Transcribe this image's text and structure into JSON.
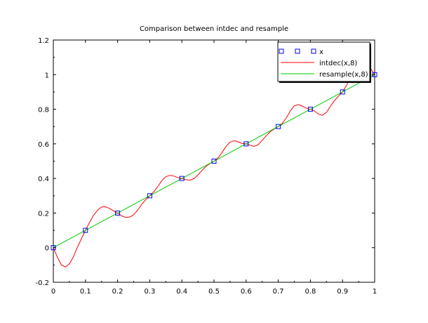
{
  "chart_data": {
    "type": "line",
    "title": "Comparison between intdec and resample",
    "xlabel": "",
    "ylabel": "",
    "xlim": [
      0,
      1
    ],
    "ylim": [
      -0.2,
      1.2
    ],
    "x_ticks": [
      "0",
      "0.1",
      "0.2",
      "0.3",
      "0.4",
      "0.5",
      "0.6",
      "0.7",
      "0.8",
      "0.9",
      "1"
    ],
    "y_ticks": [
      "-0.2",
      "0",
      "0.2",
      "0.4",
      "0.6",
      "0.8",
      "1",
      "1.2"
    ],
    "grid": false,
    "legend_position": "top-right",
    "series": [
      {
        "name": "x",
        "style": "markers",
        "marker": "square",
        "color": "#0000ff",
        "x": [
          0,
          0.1,
          0.2,
          0.3,
          0.4,
          0.5,
          0.6,
          0.7,
          0.8,
          0.9,
          1.0
        ],
        "y": [
          0,
          0.1,
          0.2,
          0.3,
          0.4,
          0.5,
          0.6,
          0.7,
          0.8,
          0.9,
          1.0
        ]
      },
      {
        "name": "intdec(x,8)",
        "style": "line",
        "color": "#ff0000",
        "x": [
          0,
          0.0125,
          0.025,
          0.0375,
          0.05,
          0.0625,
          0.075,
          0.0875,
          0.1,
          0.1125,
          0.125,
          0.1375,
          0.15,
          0.1625,
          0.175,
          0.1875,
          0.2,
          0.2125,
          0.225,
          0.2375,
          0.25,
          0.2625,
          0.275,
          0.2875,
          0.3,
          0.3125,
          0.325,
          0.3375,
          0.35,
          0.3625,
          0.375,
          0.3875,
          0.4,
          0.4125,
          0.425,
          0.4375,
          0.45,
          0.4625,
          0.475,
          0.4875,
          0.5,
          0.5125,
          0.525,
          0.5375,
          0.55,
          0.5625,
          0.575,
          0.5875,
          0.6,
          0.6125,
          0.625,
          0.6375,
          0.65,
          0.6625,
          0.675,
          0.6875,
          0.7,
          0.7125,
          0.725,
          0.7375,
          0.75,
          0.7625,
          0.775,
          0.7875,
          0.8,
          0.8125,
          0.825,
          0.8375,
          0.85,
          0.8625,
          0.875,
          0.8875,
          0.9,
          0.9125,
          0.925,
          0.9375,
          0.95,
          0.9625,
          0.975,
          0.9875,
          1.0
        ],
        "y": [
          0,
          -0.054,
          -0.1,
          -0.112,
          -0.093,
          -0.053,
          0.003,
          0.052,
          0.1,
          0.145,
          0.187,
          0.216,
          0.235,
          0.236,
          0.227,
          0.212,
          0.2,
          0.184,
          0.175,
          0.177,
          0.19,
          0.217,
          0.25,
          0.278,
          0.3,
          0.323,
          0.353,
          0.387,
          0.41,
          0.418,
          0.414,
          0.405,
          0.4,
          0.393,
          0.39,
          0.399,
          0.42,
          0.446,
          0.47,
          0.486,
          0.5,
          0.518,
          0.55,
          0.585,
          0.61,
          0.618,
          0.612,
          0.602,
          0.6,
          0.592,
          0.586,
          0.595,
          0.62,
          0.647,
          0.67,
          0.686,
          0.7,
          0.718,
          0.75,
          0.79,
          0.82,
          0.827,
          0.818,
          0.806,
          0.8,
          0.79,
          0.772,
          0.765,
          0.782,
          0.818,
          0.85,
          0.876,
          0.9,
          0.938,
          0.985,
          1.03,
          1.06,
          1.07,
          1.06,
          1.035,
          1.0
        ]
      },
      {
        "name": "resample(x,8)",
        "style": "line",
        "color": "#00cc00",
        "x": [
          0,
          1.0
        ],
        "y": [
          0,
          1.0
        ]
      }
    ]
  }
}
